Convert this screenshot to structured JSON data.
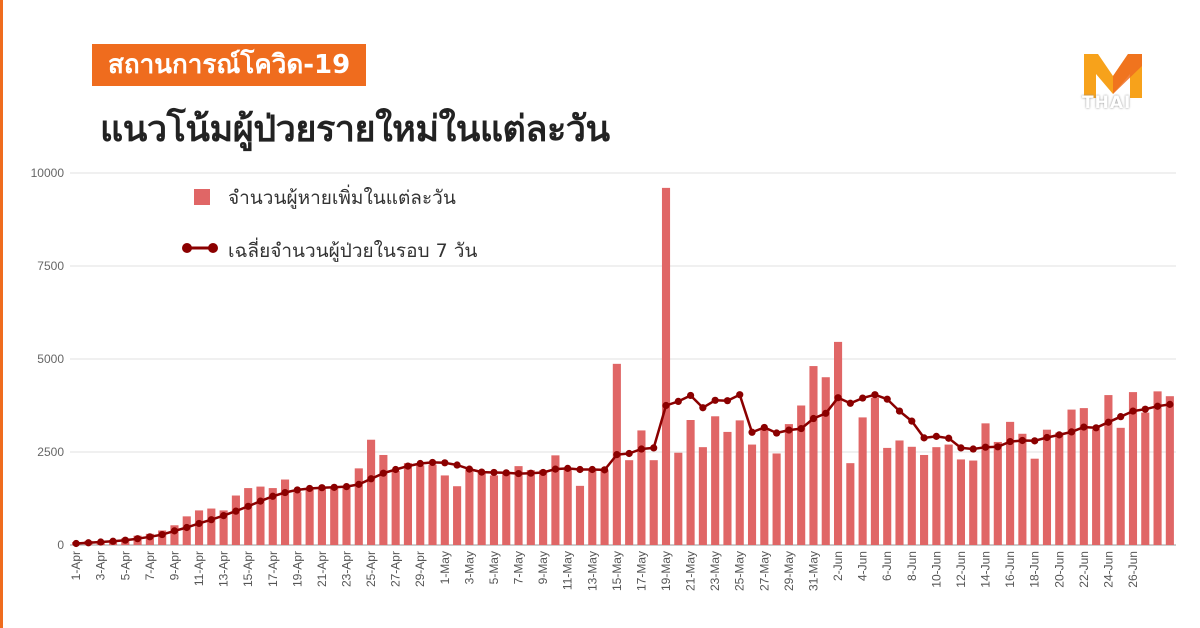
{
  "header": {
    "tag_label": "สถานการณ์โควิด-19",
    "title": "แนวโน้มผู้ป่วยรายใหม่ในแต่ละวัน",
    "logo_text": "THAI"
  },
  "colors": {
    "accent": "#ef6c1e",
    "bar": "#e06666",
    "line": "#8b0000",
    "grid": "#e0e0e0"
  },
  "chart_data": {
    "type": "bar",
    "ylim": [
      0,
      10000
    ],
    "yticks": [
      0,
      2500,
      5000,
      7500,
      10000
    ],
    "grid": true,
    "legend_position": "top-left",
    "x_tick_labels": [
      "1-Apr",
      "3-Apr",
      "5-Apr",
      "7-Apr",
      "9-Apr",
      "11-Apr",
      "13-Apr",
      "15-Apr",
      "17-Apr",
      "19-Apr",
      "21-Apr",
      "23-Apr",
      "25-Apr",
      "27-Apr",
      "29-Apr",
      "1-May",
      "3-May",
      "5-May",
      "7-May",
      "9-May",
      "11-May",
      "13-May",
      "15-May",
      "17-May",
      "19-May",
      "21-May",
      "23-May",
      "25-May",
      "27-May",
      "29-May",
      "31-May",
      "2-Jun",
      "4-Jun",
      "6-Jun",
      "8-Jun",
      "10-Jun",
      "12-Jun",
      "14-Jun",
      "16-Jun",
      "18-Jun",
      "20-Jun",
      "22-Jun",
      "24-Jun",
      "26-Jun"
    ],
    "series": [
      {
        "name": "จำนวนผู้หายเพิ่มในแต่ละวัน",
        "type": "bar",
        "values": [
          80,
          110,
          90,
          130,
          180,
          250,
          300,
          390,
          530,
          770,
          930,
          980,
          930,
          1330,
          1530,
          1570,
          1530,
          1760,
          1420,
          1500,
          1530,
          1560,
          1570,
          2060,
          2830,
          2420,
          1990,
          2200,
          2140,
          2160,
          1870,
          1580,
          2030,
          1950,
          1870,
          1930,
          2120,
          2010,
          2010,
          2410,
          2050,
          1590,
          2000,
          2010,
          4870,
          2280,
          3080,
          2280,
          9600,
          2480,
          3360,
          2630,
          3460,
          3040,
          3350,
          2700,
          3120,
          2460,
          3250,
          3750,
          4810,
          4510,
          5460,
          2200,
          3430,
          3960,
          2610,
          2810,
          2640,
          2420,
          2630,
          2700,
          2300,
          2270,
          3270,
          2770,
          3310,
          2990,
          2320,
          3100,
          3020,
          3640,
          3680,
          3110,
          4030,
          3150,
          4110,
          3560,
          4130,
          4000
        ]
      },
      {
        "name": "เฉลี่ยจำนวนผู้ป่วยในรอบ 7 วัน",
        "type": "line",
        "values": [
          40,
          60,
          80,
          100,
          130,
          170,
          220,
          280,
          380,
          470,
          580,
          680,
          790,
          910,
          1040,
          1180,
          1310,
          1410,
          1480,
          1520,
          1540,
          1550,
          1570,
          1630,
          1780,
          1930,
          2030,
          2120,
          2190,
          2220,
          2210,
          2150,
          2040,
          1960,
          1950,
          1940,
          1920,
          1930,
          1950,
          2040,
          2060,
          2030,
          2030,
          2020,
          2430,
          2460,
          2580,
          2610,
          3750,
          3860,
          4020,
          3690,
          3890,
          3880,
          4040,
          3030,
          3160,
          3010,
          3090,
          3130,
          3400,
          3540,
          3960,
          3810,
          3950,
          4040,
          3920,
          3600,
          3330,
          2880,
          2920,
          2870,
          2610,
          2580,
          2630,
          2640,
          2780,
          2810,
          2800,
          2890,
          2960,
          3040,
          3170,
          3150,
          3300,
          3450,
          3600,
          3650,
          3730,
          3780
        ]
      }
    ]
  }
}
